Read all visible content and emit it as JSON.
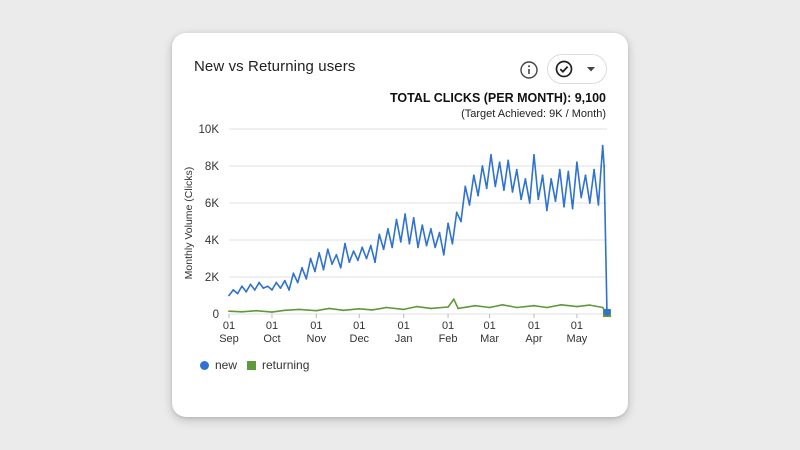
{
  "widget": {
    "title": "New vs Returning users",
    "total_clicks": "TOTAL CLICKS (PER MONTH): 9,100",
    "target_note": "(Target Achieved: 9K / Month)",
    "info_icon": "info-icon",
    "status_icon": "check-circle-icon",
    "dropdown_icon": "caret-down-icon"
  },
  "colors": {
    "new": "#2f72d0",
    "returning": "#5e9a3a",
    "grid": "#e0e0e0"
  },
  "chart_data": {
    "type": "line",
    "ylabel": "Monthly Volume (Clicks)",
    "ylim": [
      0,
      10000
    ],
    "yticks": [
      0,
      2000,
      4000,
      6000,
      8000,
      10000
    ],
    "ytick_labels": [
      "0",
      "2K",
      "4K",
      "6K",
      "8K",
      "10K"
    ],
    "xlim": [
      "2023-09-01",
      "2024-05-22"
    ],
    "xticks": [
      {
        "date": "2023-09-01",
        "day": "01",
        "month": "Sep"
      },
      {
        "date": "2023-10-01",
        "day": "01",
        "month": "Oct"
      },
      {
        "date": "2023-11-01",
        "day": "01",
        "month": "Nov"
      },
      {
        "date": "2023-12-01",
        "day": "01",
        "month": "Dec"
      },
      {
        "date": "2024-01-01",
        "day": "01",
        "month": "Jan"
      },
      {
        "date": "2024-02-01",
        "day": "01",
        "month": "Feb"
      },
      {
        "date": "2024-03-01",
        "day": "01",
        "month": "Mar"
      },
      {
        "date": "2024-04-01",
        "day": "01",
        "month": "Apr"
      },
      {
        "date": "2024-05-01",
        "day": "01",
        "month": "May"
      }
    ],
    "grid": true,
    "legend": "bottom-left",
    "series": [
      {
        "name": "new",
        "marker": "circle",
        "points": [
          [
            "2023-09-01",
            1000
          ],
          [
            "2023-09-04",
            1300
          ],
          [
            "2023-09-07",
            1100
          ],
          [
            "2023-09-10",
            1500
          ],
          [
            "2023-09-13",
            1200
          ],
          [
            "2023-09-16",
            1600
          ],
          [
            "2023-09-19",
            1300
          ],
          [
            "2023-09-22",
            1700
          ],
          [
            "2023-09-25",
            1400
          ],
          [
            "2023-09-28",
            1500
          ],
          [
            "2023-10-01",
            1300
          ],
          [
            "2023-10-04",
            1700
          ],
          [
            "2023-10-07",
            1400
          ],
          [
            "2023-10-10",
            1800
          ],
          [
            "2023-10-13",
            1300
          ],
          [
            "2023-10-16",
            2200
          ],
          [
            "2023-10-19",
            1700
          ],
          [
            "2023-10-22",
            2500
          ],
          [
            "2023-10-25",
            1900
          ],
          [
            "2023-10-28",
            3000
          ],
          [
            "2023-10-31",
            2300
          ],
          [
            "2023-11-03",
            3300
          ],
          [
            "2023-11-06",
            2400
          ],
          [
            "2023-11-09",
            3500
          ],
          [
            "2023-11-12",
            2700
          ],
          [
            "2023-11-15",
            3200
          ],
          [
            "2023-11-18",
            2500
          ],
          [
            "2023-11-21",
            3800
          ],
          [
            "2023-11-24",
            2800
          ],
          [
            "2023-11-27",
            3400
          ],
          [
            "2023-11-30",
            2900
          ],
          [
            "2023-12-03",
            3600
          ],
          [
            "2023-12-06",
            3000
          ],
          [
            "2023-12-09",
            3700
          ],
          [
            "2023-12-12",
            2800
          ],
          [
            "2023-12-15",
            4300
          ],
          [
            "2023-12-18",
            3500
          ],
          [
            "2023-12-21",
            4600
          ],
          [
            "2023-12-24",
            3600
          ],
          [
            "2023-12-27",
            5100
          ],
          [
            "2023-12-30",
            3900
          ],
          [
            "2024-01-02",
            5400
          ],
          [
            "2024-01-05",
            3800
          ],
          [
            "2024-01-08",
            5200
          ],
          [
            "2024-01-11",
            3600
          ],
          [
            "2024-01-14",
            4800
          ],
          [
            "2024-01-17",
            3700
          ],
          [
            "2024-01-20",
            4600
          ],
          [
            "2024-01-23",
            3600
          ],
          [
            "2024-01-26",
            4400
          ],
          [
            "2024-01-29",
            3200
          ],
          [
            "2024-02-01",
            4900
          ],
          [
            "2024-02-04",
            3800
          ],
          [
            "2024-02-07",
            5500
          ],
          [
            "2024-02-10",
            5000
          ],
          [
            "2024-02-13",
            6900
          ],
          [
            "2024-02-16",
            5900
          ],
          [
            "2024-02-19",
            7500
          ],
          [
            "2024-02-22",
            6400
          ],
          [
            "2024-02-25",
            8000
          ],
          [
            "2024-02-28",
            6800
          ],
          [
            "2024-03-02",
            8600
          ],
          [
            "2024-03-05",
            6900
          ],
          [
            "2024-03-08",
            8200
          ],
          [
            "2024-03-11",
            6700
          ],
          [
            "2024-03-14",
            8300
          ],
          [
            "2024-03-17",
            6600
          ],
          [
            "2024-03-20",
            7800
          ],
          [
            "2024-03-23",
            6200
          ],
          [
            "2024-03-26",
            7300
          ],
          [
            "2024-03-29",
            6000
          ],
          [
            "2024-04-01",
            8600
          ],
          [
            "2024-04-04",
            6200
          ],
          [
            "2024-04-07",
            7500
          ],
          [
            "2024-04-10",
            5600
          ],
          [
            "2024-04-13",
            7300
          ],
          [
            "2024-04-16",
            6100
          ],
          [
            "2024-04-19",
            7800
          ],
          [
            "2024-04-22",
            5800
          ],
          [
            "2024-04-25",
            7700
          ],
          [
            "2024-04-28",
            5700
          ],
          [
            "2024-05-01",
            8200
          ],
          [
            "2024-05-04",
            6300
          ],
          [
            "2024-05-07",
            7500
          ],
          [
            "2024-05-10",
            6000
          ],
          [
            "2024-05-13",
            7800
          ],
          [
            "2024-05-16",
            5900
          ],
          [
            "2024-05-19",
            9100
          ],
          [
            "2024-05-20",
            8000
          ],
          [
            "2024-05-22",
            0
          ]
        ]
      },
      {
        "name": "returning",
        "marker": "square",
        "points": [
          [
            "2023-09-01",
            150
          ],
          [
            "2023-09-10",
            120
          ],
          [
            "2023-09-20",
            180
          ],
          [
            "2023-10-01",
            100
          ],
          [
            "2023-10-10",
            200
          ],
          [
            "2023-10-20",
            250
          ],
          [
            "2023-11-01",
            180
          ],
          [
            "2023-11-10",
            300
          ],
          [
            "2023-11-20",
            200
          ],
          [
            "2023-12-01",
            280
          ],
          [
            "2023-12-10",
            220
          ],
          [
            "2023-12-20",
            350
          ],
          [
            "2024-01-01",
            250
          ],
          [
            "2024-01-10",
            400
          ],
          [
            "2024-01-20",
            300
          ],
          [
            "2024-02-01",
            380
          ],
          [
            "2024-02-05",
            800
          ],
          [
            "2024-02-08",
            300
          ],
          [
            "2024-02-20",
            450
          ],
          [
            "2024-03-01",
            350
          ],
          [
            "2024-03-10",
            500
          ],
          [
            "2024-03-20",
            350
          ],
          [
            "2024-04-01",
            450
          ],
          [
            "2024-04-10",
            350
          ],
          [
            "2024-04-20",
            500
          ],
          [
            "2024-05-01",
            400
          ],
          [
            "2024-05-10",
            480
          ],
          [
            "2024-05-19",
            350
          ],
          [
            "2024-05-22",
            0
          ]
        ]
      }
    ]
  },
  "legend": {
    "items": [
      {
        "label": "new"
      },
      {
        "label": "returning"
      }
    ]
  }
}
